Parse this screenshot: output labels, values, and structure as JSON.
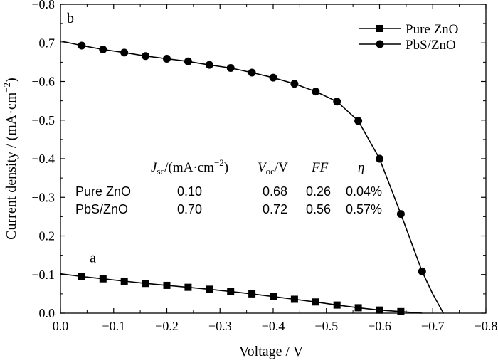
{
  "chart_data": {
    "type": "line",
    "xlabel": "Voltage / V",
    "ylabel_parts": [
      "Current density / (mA·cm",
      "−2",
      ")"
    ],
    "xlim": [
      0.0,
      -0.8
    ],
    "ylim": [
      0.0,
      -0.8
    ],
    "x_ticks": [
      "0.0",
      "−0.1",
      "−0.2",
      "−0.3",
      "−0.4",
      "−0.5",
      "−0.6",
      "−0.7",
      "−0.8"
    ],
    "y_ticks": [
      "0.0",
      "−0.1",
      "−0.2",
      "−0.3",
      "−0.4",
      "−0.5",
      "−0.6",
      "−0.7",
      "−0.8"
    ],
    "grid": false,
    "legend_position": "top-right",
    "series": [
      {
        "name": "Pure ZnO",
        "marker": "square",
        "curve_label": "a",
        "x": [
          0.0,
          -0.04,
          -0.08,
          -0.12,
          -0.16,
          -0.2,
          -0.24,
          -0.28,
          -0.32,
          -0.36,
          -0.4,
          -0.44,
          -0.48,
          -0.52,
          -0.56,
          -0.6,
          -0.64,
          -0.68
        ],
        "y": [
          -0.102,
          -0.095,
          -0.089,
          -0.083,
          -0.077,
          -0.072,
          -0.067,
          -0.062,
          -0.056,
          -0.05,
          -0.043,
          -0.036,
          -0.029,
          -0.021,
          -0.014,
          -0.008,
          -0.004,
          0.0
        ],
        "marker_x": [
          -0.04,
          -0.08,
          -0.12,
          -0.16,
          -0.2,
          -0.24,
          -0.28,
          -0.32,
          -0.36,
          -0.4,
          -0.44,
          -0.48,
          -0.52,
          -0.56,
          -0.6,
          -0.64
        ],
        "marker_y": [
          -0.095,
          -0.089,
          -0.083,
          -0.077,
          -0.072,
          -0.067,
          -0.062,
          -0.056,
          -0.05,
          -0.043,
          -0.036,
          -0.029,
          -0.021,
          -0.014,
          -0.008,
          -0.004
        ]
      },
      {
        "name": "PbS/ZnO",
        "marker": "circle",
        "curve_label": "b",
        "x": [
          0.0,
          -0.04,
          -0.08,
          -0.12,
          -0.16,
          -0.2,
          -0.24,
          -0.28,
          -0.32,
          -0.36,
          -0.4,
          -0.44,
          -0.48,
          -0.52,
          -0.56,
          -0.6,
          -0.64,
          -0.68,
          -0.7,
          -0.72
        ],
        "y": [
          -0.705,
          -0.693,
          -0.683,
          -0.675,
          -0.666,
          -0.659,
          -0.652,
          -0.643,
          -0.635,
          -0.623,
          -0.61,
          -0.594,
          -0.574,
          -0.548,
          -0.498,
          -0.4,
          -0.257,
          -0.108,
          -0.05,
          0.0
        ],
        "marker_x": [
          -0.04,
          -0.08,
          -0.12,
          -0.16,
          -0.2,
          -0.24,
          -0.28,
          -0.32,
          -0.36,
          -0.4,
          -0.44,
          -0.48,
          -0.52,
          -0.56,
          -0.6,
          -0.64,
          -0.68
        ],
        "marker_y": [
          -0.693,
          -0.683,
          -0.675,
          -0.666,
          -0.659,
          -0.652,
          -0.643,
          -0.635,
          -0.623,
          -0.61,
          -0.594,
          -0.574,
          -0.548,
          -0.498,
          -0.4,
          -0.257,
          -0.108
        ]
      }
    ],
    "table": {
      "header": [
        {
          "main": "J",
          "sub": "sc",
          "rest": "/(mA·cm",
          "sup": "−2",
          "close": ")"
        },
        {
          "main": "V",
          "sub": "oc",
          "rest": "/V"
        },
        {
          "main": "FF"
        },
        {
          "main": "η"
        }
      ],
      "rows": [
        {
          "label": "Pure ZnO",
          "values": [
            "0.10",
            "0.68",
            "0.26",
            "0.04%"
          ]
        },
        {
          "label": "PbS/ZnO",
          "values": [
            "0.70",
            "0.72",
            "0.56",
            "0.57%"
          ]
        }
      ]
    }
  }
}
